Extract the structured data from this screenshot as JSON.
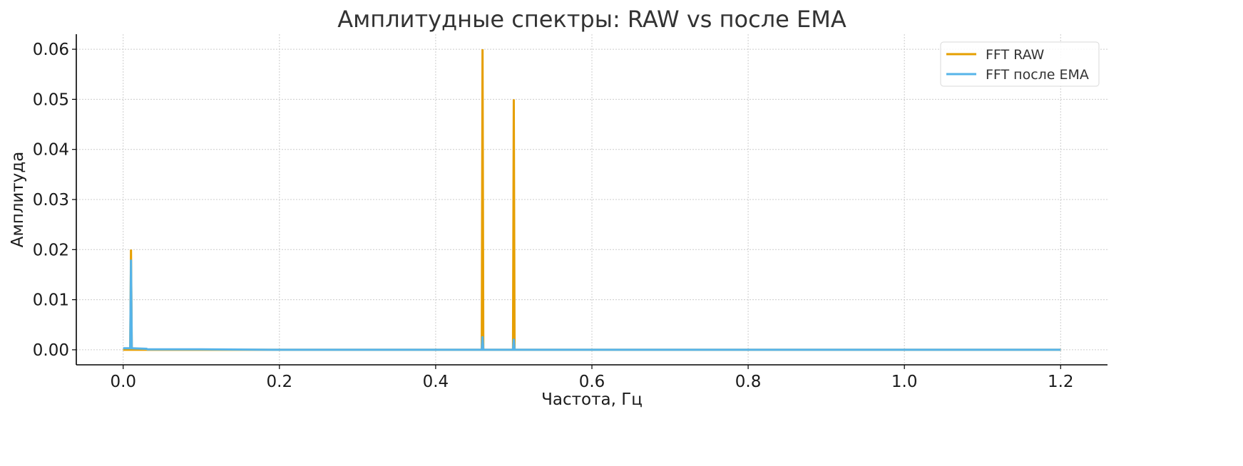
{
  "chart_data": {
    "type": "line",
    "title": "Амплитудные спектры: RAW vs после EMA",
    "xlabel": "Частота, Гц",
    "ylabel": "Амплитуда",
    "xlim": [
      -0.06,
      1.26
    ],
    "ylim": [
      -0.003,
      0.063
    ],
    "x_ticks": [
      0.0,
      0.2,
      0.4,
      0.6,
      0.8,
      1.0,
      1.2
    ],
    "x_tick_labels": [
      "0.0",
      "0.2",
      "0.4",
      "0.6",
      "0.8",
      "1.0",
      "1.2"
    ],
    "y_ticks": [
      0.0,
      0.01,
      0.02,
      0.03,
      0.04,
      0.05,
      0.06
    ],
    "y_tick_labels": [
      "0.00",
      "0.01",
      "0.02",
      "0.03",
      "0.04",
      "0.05",
      "0.06"
    ],
    "grid": true,
    "legend_position": "top-right",
    "series": [
      {
        "name": "FFT RAW",
        "color": "#E69F00",
        "points": [
          [
            0.0,
            0.0
          ],
          [
            0.008,
            0.0
          ],
          [
            0.009,
            0.0
          ],
          [
            0.01,
            0.02
          ],
          [
            0.011,
            0.0
          ],
          [
            0.02,
            0.0
          ],
          [
            0.1,
            0.0
          ],
          [
            0.2,
            0.0
          ],
          [
            0.3,
            0.0
          ],
          [
            0.4,
            0.0
          ],
          [
            0.458,
            0.0
          ],
          [
            0.459,
            0.0
          ],
          [
            0.46,
            0.06
          ],
          [
            0.461,
            0.0
          ],
          [
            0.498,
            0.0
          ],
          [
            0.499,
            0.0
          ],
          [
            0.5,
            0.05
          ],
          [
            0.501,
            0.0
          ],
          [
            0.6,
            0.0
          ],
          [
            0.8,
            0.0
          ],
          [
            1.0,
            0.0
          ],
          [
            1.2,
            0.0
          ]
        ]
      },
      {
        "name": "FFT после EMA",
        "color": "#56B4E9",
        "points": [
          [
            0.0,
            0.0003
          ],
          [
            0.008,
            0.0003
          ],
          [
            0.009,
            0.0003
          ],
          [
            0.01,
            0.018
          ],
          [
            0.011,
            0.0003
          ],
          [
            0.03,
            0.0002
          ],
          [
            0.031,
            0.0001
          ],
          [
            0.1,
            0.0001
          ],
          [
            0.2,
            0.0
          ],
          [
            0.3,
            0.0
          ],
          [
            0.4,
            0.0
          ],
          [
            0.458,
            0.0
          ],
          [
            0.459,
            0.0
          ],
          [
            0.46,
            0.0027
          ],
          [
            0.461,
            0.0
          ],
          [
            0.498,
            0.0
          ],
          [
            0.499,
            0.0
          ],
          [
            0.5,
            0.0022
          ],
          [
            0.501,
            0.0
          ],
          [
            0.6,
            0.0
          ],
          [
            0.8,
            0.0
          ],
          [
            1.0,
            0.0
          ],
          [
            1.2,
            0.0
          ]
        ]
      }
    ]
  }
}
